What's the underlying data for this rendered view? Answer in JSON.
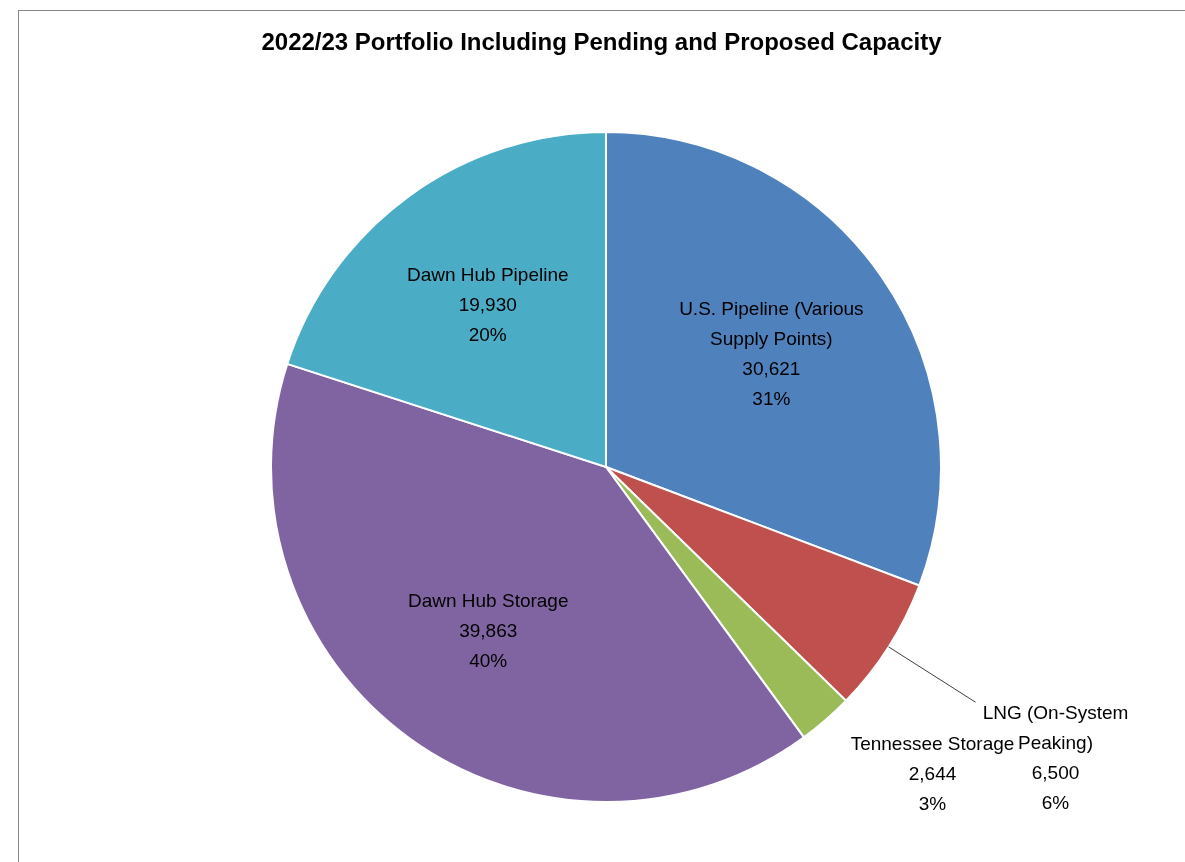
{
  "chart_data": {
    "type": "pie",
    "title": "2022/23 Portfolio Including Pending and Proposed Capacity",
    "categories": [
      "U.S. Pipeline (Various Supply Points)",
      "LNG (On-System Peaking)",
      "Tennessee Storage",
      "Dawn Hub Storage",
      "Dawn Hub Pipeline"
    ],
    "values": [
      30621,
      6500,
      2644,
      39863,
      19930
    ],
    "value_labels": [
      "30,621\n31%",
      "6,500\n6%",
      "2,644\n3%",
      "39,863\n40%",
      "19,930\n20%"
    ],
    "colors": [
      "#4f81bd",
      "#c0504d",
      "#9bbb59",
      "#8064a2",
      "#4bacc6"
    ],
    "legend": false
  }
}
